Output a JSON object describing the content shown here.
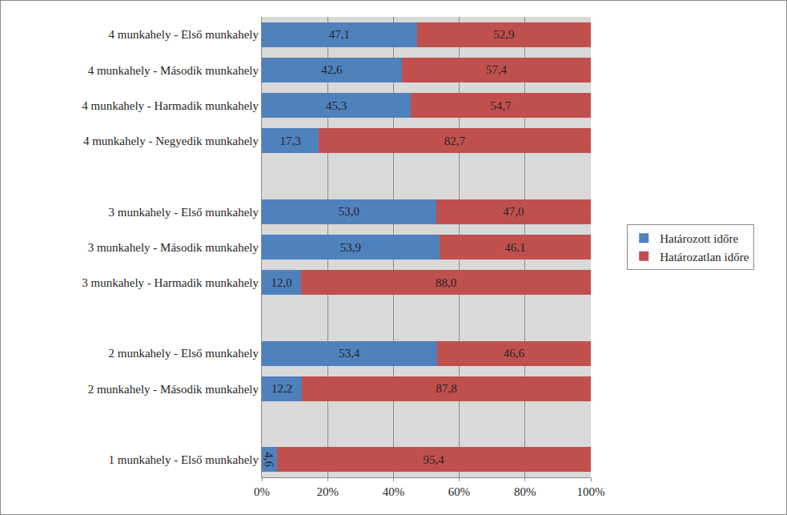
{
  "chart_data": {
    "type": "bar",
    "orientation": "horizontal",
    "stacked": true,
    "data_labels": true,
    "grid": true,
    "legend": "right",
    "categories": [
      "4 munkahely - Első munkahely",
      "4 munkahely - Második munkahely",
      "4 munkahely - Harmadik munkahely",
      "4 munkahely - Negyedik munkahely",
      null,
      "3 munkahely - Első munkahely",
      "3 munkahely - Második munkahely",
      "3 munkahely - Harmadik munkahely",
      null,
      "2 munkahely - Első munkahely",
      "2 munkahely - Második munkahely",
      null,
      "1 munkahely - Első munkahely"
    ],
    "series": [
      {
        "name": "Határozott időre",
        "color": "#4F81BD",
        "values": [
          47.1,
          42.6,
          45.3,
          17.3,
          null,
          53.0,
          53.9,
          12.0,
          null,
          53.4,
          12.2,
          null,
          4.6
        ],
        "value_labels": [
          "47,1",
          "42,6",
          "45,3",
          "17,3",
          null,
          "53,0",
          "53,9",
          "12,0",
          null,
          "53,4",
          "12,2",
          null,
          "4,6"
        ]
      },
      {
        "name": "Határozatlan időre",
        "color": "#C0504D",
        "values": [
          52.9,
          57.4,
          54.7,
          82.7,
          null,
          47.0,
          46.1,
          88.0,
          null,
          46.6,
          87.8,
          null,
          95.4
        ],
        "value_labels": [
          "52,9",
          "57,4",
          "54,7",
          "82,7",
          null,
          "47,0",
          "46,1",
          "88,0",
          null,
          "46,6",
          "87,8",
          null,
          "95,4"
        ]
      }
    ],
    "xlim": [
      0,
      100
    ],
    "xticks": [
      {
        "value": 0,
        "label": "0%"
      },
      {
        "value": 20,
        "label": "20%"
      },
      {
        "value": 40,
        "label": "40%"
      },
      {
        "value": 60,
        "label": "60%"
      },
      {
        "value": 80,
        "label": "80%"
      },
      {
        "value": 100,
        "label": "100%"
      }
    ]
  }
}
